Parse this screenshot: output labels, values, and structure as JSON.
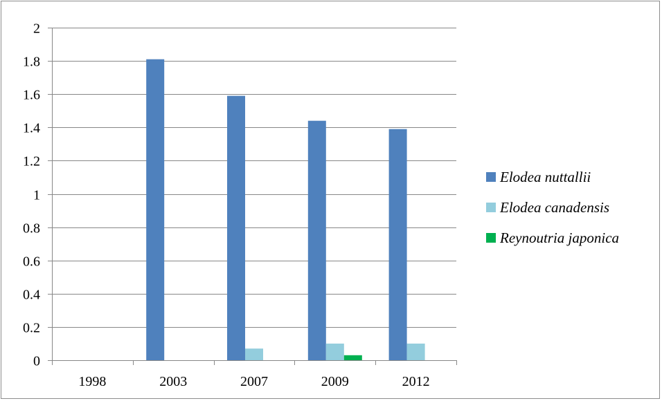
{
  "chart_data": {
    "type": "bar",
    "categories": [
      "1998",
      "2003",
      "2007",
      "2009",
      "2012"
    ],
    "series": [
      {
        "name": "Elodea nuttallii",
        "color": "#4f81bd",
        "values": [
          0,
          1.81,
          1.59,
          1.44,
          1.39
        ]
      },
      {
        "name": "Elodea canadensis",
        "color": "#93cddd",
        "values": [
          0,
          0,
          0.07,
          0.1,
          0.1
        ]
      },
      {
        "name": "Reynoutria japonica",
        "color": "#00b050",
        "values": [
          0,
          0,
          0,
          0.03,
          0
        ]
      }
    ],
    "yticks": [
      "0",
      "0.2",
      "0.4",
      "0.6",
      "0.8",
      "1",
      "1.2",
      "1.4",
      "1.6",
      "1.8",
      "2"
    ],
    "ylim": [
      0,
      2
    ],
    "grid": true,
    "legend_position": "right"
  }
}
